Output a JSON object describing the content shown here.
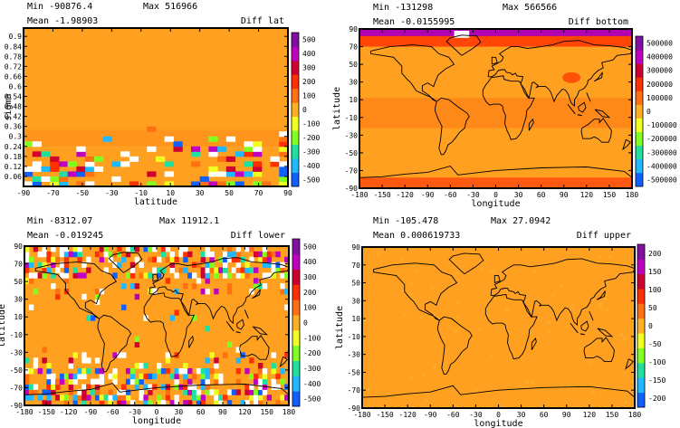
{
  "palette": {
    "background": "#ffa020",
    "colorbar": [
      "#1060ff",
      "#20b8ff",
      "#20e0a0",
      "#80ff20",
      "#f0ff20",
      "#ffb020",
      "#ff7010",
      "#ff3000",
      "#d00030",
      "#c000c0",
      "#8010a0"
    ]
  },
  "chart_data": [
    {
      "type": "heatmap",
      "stats": {
        "min_label": "Min",
        "min": "-90876.4",
        "max_label": "Max",
        "max": "516966",
        "mean_label": "Mean",
        "mean": "-1.98903"
      },
      "title": "Diff lat",
      "xlabel": "latitude",
      "ylabel": "sigma",
      "x_ticks": [
        "-90",
        "-70",
        "-50",
        "-30",
        "-10",
        "10",
        "30",
        "50",
        "70",
        "90"
      ],
      "y_ticks": [
        "0.9",
        "0.84",
        "0.78",
        "0.72",
        "0.66",
        "0.6",
        "0.54",
        "0.48",
        "0.42",
        "0.36",
        "0.3",
        "0.24",
        "0.18",
        "0.12",
        "0.06"
      ],
      "colorbar_ticks": [
        "500",
        "400",
        "300",
        "200",
        "100",
        "0",
        "-100",
        "-200",
        "-300",
        "-400",
        "-500"
      ],
      "xlim": [
        -90,
        90
      ],
      "ylim": [
        0,
        0.95
      ]
    },
    {
      "type": "heatmap",
      "stats": {
        "min_label": "Min",
        "min": "-131298",
        "max_label": "Max",
        "max": "566566",
        "mean_label": "Mean",
        "mean": "-0.0155995"
      },
      "title": "Diff bottom",
      "xlabel": "longitude",
      "ylabel": "latitude",
      "x_ticks": [
        "-180",
        "-150",
        "-120",
        "-90",
        "-60",
        "-30",
        "0",
        "30",
        "60",
        "90",
        "120",
        "150",
        "180"
      ],
      "y_ticks": [
        "90",
        "70",
        "50",
        "30",
        "10",
        "-10",
        "-30",
        "-50",
        "-70",
        "-90"
      ],
      "colorbar_ticks": [
        "500000",
        "400000",
        "300000",
        "200000",
        "100000",
        "0",
        "-100000",
        "-200000",
        "-300000",
        "-400000",
        "-500000"
      ],
      "xlim": [
        -180,
        180
      ],
      "ylim": [
        -90,
        90
      ]
    },
    {
      "type": "heatmap",
      "stats": {
        "min_label": "Min",
        "min": "-8312.07",
        "max_label": "Max",
        "max": "11912.1",
        "mean_label": "Mean",
        "mean": "-0.019245"
      },
      "title": "Diff lower",
      "xlabel": "longitude",
      "ylabel": "latitude",
      "x_ticks": [
        "-180",
        "-150",
        "-120",
        "-90",
        "-60",
        "-30",
        "0",
        "30",
        "60",
        "90",
        "120",
        "150",
        "180"
      ],
      "y_ticks": [
        "90",
        "70",
        "50",
        "30",
        "10",
        "-10",
        "-30",
        "-50",
        "-70",
        "-90"
      ],
      "colorbar_ticks": [
        "500",
        "400",
        "300",
        "200",
        "100",
        "0",
        "-100",
        "-200",
        "-300",
        "-400",
        "-500"
      ],
      "xlim": [
        -180,
        180
      ],
      "ylim": [
        -90,
        90
      ]
    },
    {
      "type": "heatmap",
      "stats": {
        "min_label": "Min",
        "min": "-105.478",
        "max_label": "Max",
        "max": "27.0942",
        "mean_label": "Mean",
        "mean": "0.000619733"
      },
      "title": "Diff upper",
      "xlabel": "longitude",
      "ylabel": "latitude",
      "x_ticks": [
        "-180",
        "-150",
        "-120",
        "-90",
        "-60",
        "-30",
        "0",
        "30",
        "60",
        "90",
        "120",
        "150",
        "180"
      ],
      "y_ticks": [
        "90",
        "70",
        "50",
        "30",
        "10",
        "-10",
        "-30",
        "-50",
        "-70",
        "-90"
      ],
      "colorbar_ticks": [
        "200",
        "150",
        "100",
        "50",
        "0",
        "-50",
        "-100",
        "-150",
        "-200"
      ],
      "xlim": [
        -180,
        180
      ],
      "ylim": [
        -90,
        90
      ]
    }
  ]
}
